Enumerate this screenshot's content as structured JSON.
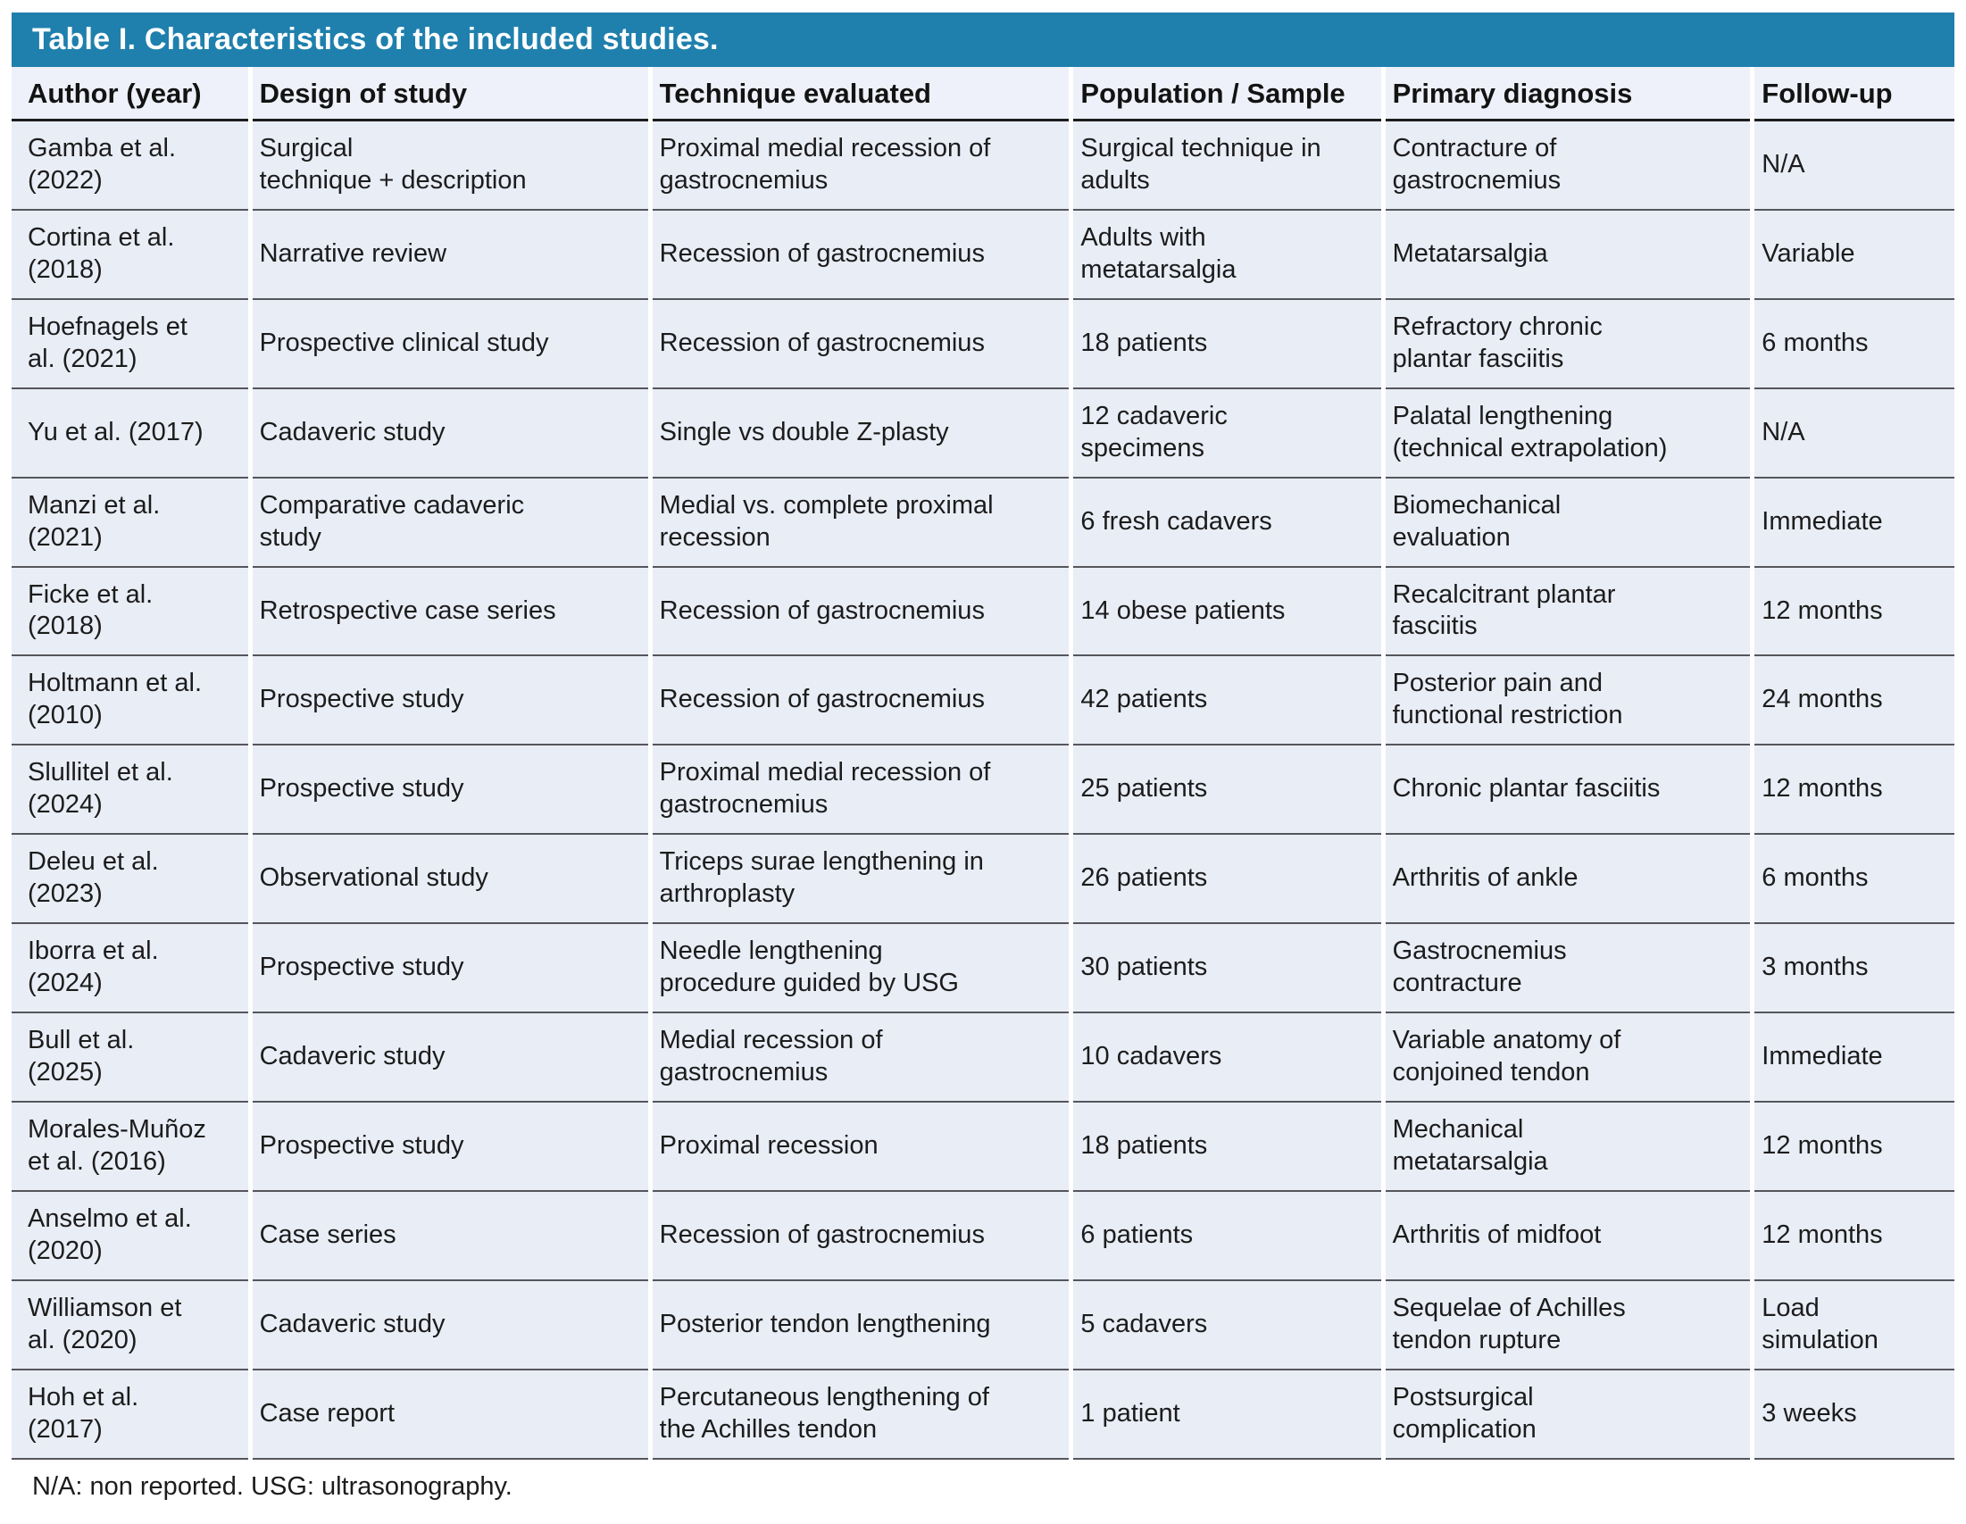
{
  "title": "Table I. Characteristics of the included studies.",
  "accent_color": "#1f80ad",
  "table": {
    "columns": [
      "Author (year)",
      "Design of study",
      "Technique evaluated",
      "Population / Sample",
      "Primary diagnosis",
      "Follow-up"
    ],
    "rows": [
      [
        "Gamba et al.\n(2022)",
        "Surgical\ntechnique + description",
        "Proximal medial recession of\ngastrocnemius",
        "Surgical technique in\nadults",
        "Contracture of\ngastrocnemius",
        "N/A"
      ],
      [
        "Cortina et al.\n(2018)",
        "Narrative review",
        "Recession of gastrocnemius",
        "Adults with\nmetatarsalgia",
        "Metatarsalgia",
        "Variable"
      ],
      [
        "Hoefnagels et\nal. (2021)",
        "Prospective clinical study",
        "Recession of gastrocnemius",
        "18 patients",
        "Refractory chronic\nplantar fasciitis",
        "6 months"
      ],
      [
        "Yu et al. (2017)",
        "Cadaveric study",
        "Single vs double Z-plasty",
        "12 cadaveric\nspecimens",
        "Palatal lengthening\n(technical extrapolation)",
        "N/A"
      ],
      [
        "Manzi et al.\n(2021)",
        "Comparative cadaveric\nstudy",
        "Medial vs. complete proximal\nrecession",
        "6 fresh cadavers",
        "Biomechanical\nevaluation",
        "Immediate"
      ],
      [
        "Ficke et al.\n(2018)",
        "Retrospective case series",
        "Recession of gastrocnemius",
        "14 obese patients",
        "Recalcitrant plantar\nfasciitis",
        "12 months"
      ],
      [
        "Holtmann et al.\n(2010)",
        "Prospective study",
        "Recession of gastrocnemius",
        "42 patients",
        "Posterior pain and\nfunctional restriction",
        "24 months"
      ],
      [
        "Slullitel et al.\n(2024)",
        "Prospective study",
        "Proximal medial recession of\ngastrocnemius",
        "25 patients",
        "Chronic plantar fasciitis",
        "12 months"
      ],
      [
        "Deleu et al.\n(2023)",
        "Observational study",
        "Triceps surae lengthening in\narthroplasty",
        "26 patients",
        "Arthritis of ankle",
        "6 months"
      ],
      [
        "Iborra et al.\n(2024)",
        "Prospective study",
        "Needle lengthening\nprocedure guided by USG",
        "30 patients",
        "Gastrocnemius\ncontracture",
        "3 months"
      ],
      [
        "Bull et al.\n(2025)",
        "Cadaveric study",
        "Medial recession of\ngastrocnemius",
        "10 cadavers",
        "Variable anatomy of\nconjoined tendon",
        "Immediate"
      ],
      [
        "Morales-Muñoz\net al. (2016)",
        "Prospective study",
        "Proximal recession",
        "18 patients",
        "Mechanical\nmetatarsalgia",
        "12 months"
      ],
      [
        "Anselmo et al.\n(2020)",
        "Case series",
        "Recession of gastrocnemius",
        "6 patients",
        "Arthritis of midfoot",
        "12 months"
      ],
      [
        "Williamson et\nal. (2020)",
        "Cadaveric study",
        "Posterior tendon lengthening",
        "5 cadavers",
        "Sequelae of Achilles\ntendon rupture",
        "Load\nsimulation"
      ],
      [
        "Hoh et al.\n(2017)",
        "Case report",
        "Percutaneous lengthening of\nthe Achilles tendon",
        "1 patient",
        "Postsurgical\ncomplication",
        "3 weeks"
      ]
    ]
  },
  "footnote": "N/A: non reported. USG: ultrasonography."
}
